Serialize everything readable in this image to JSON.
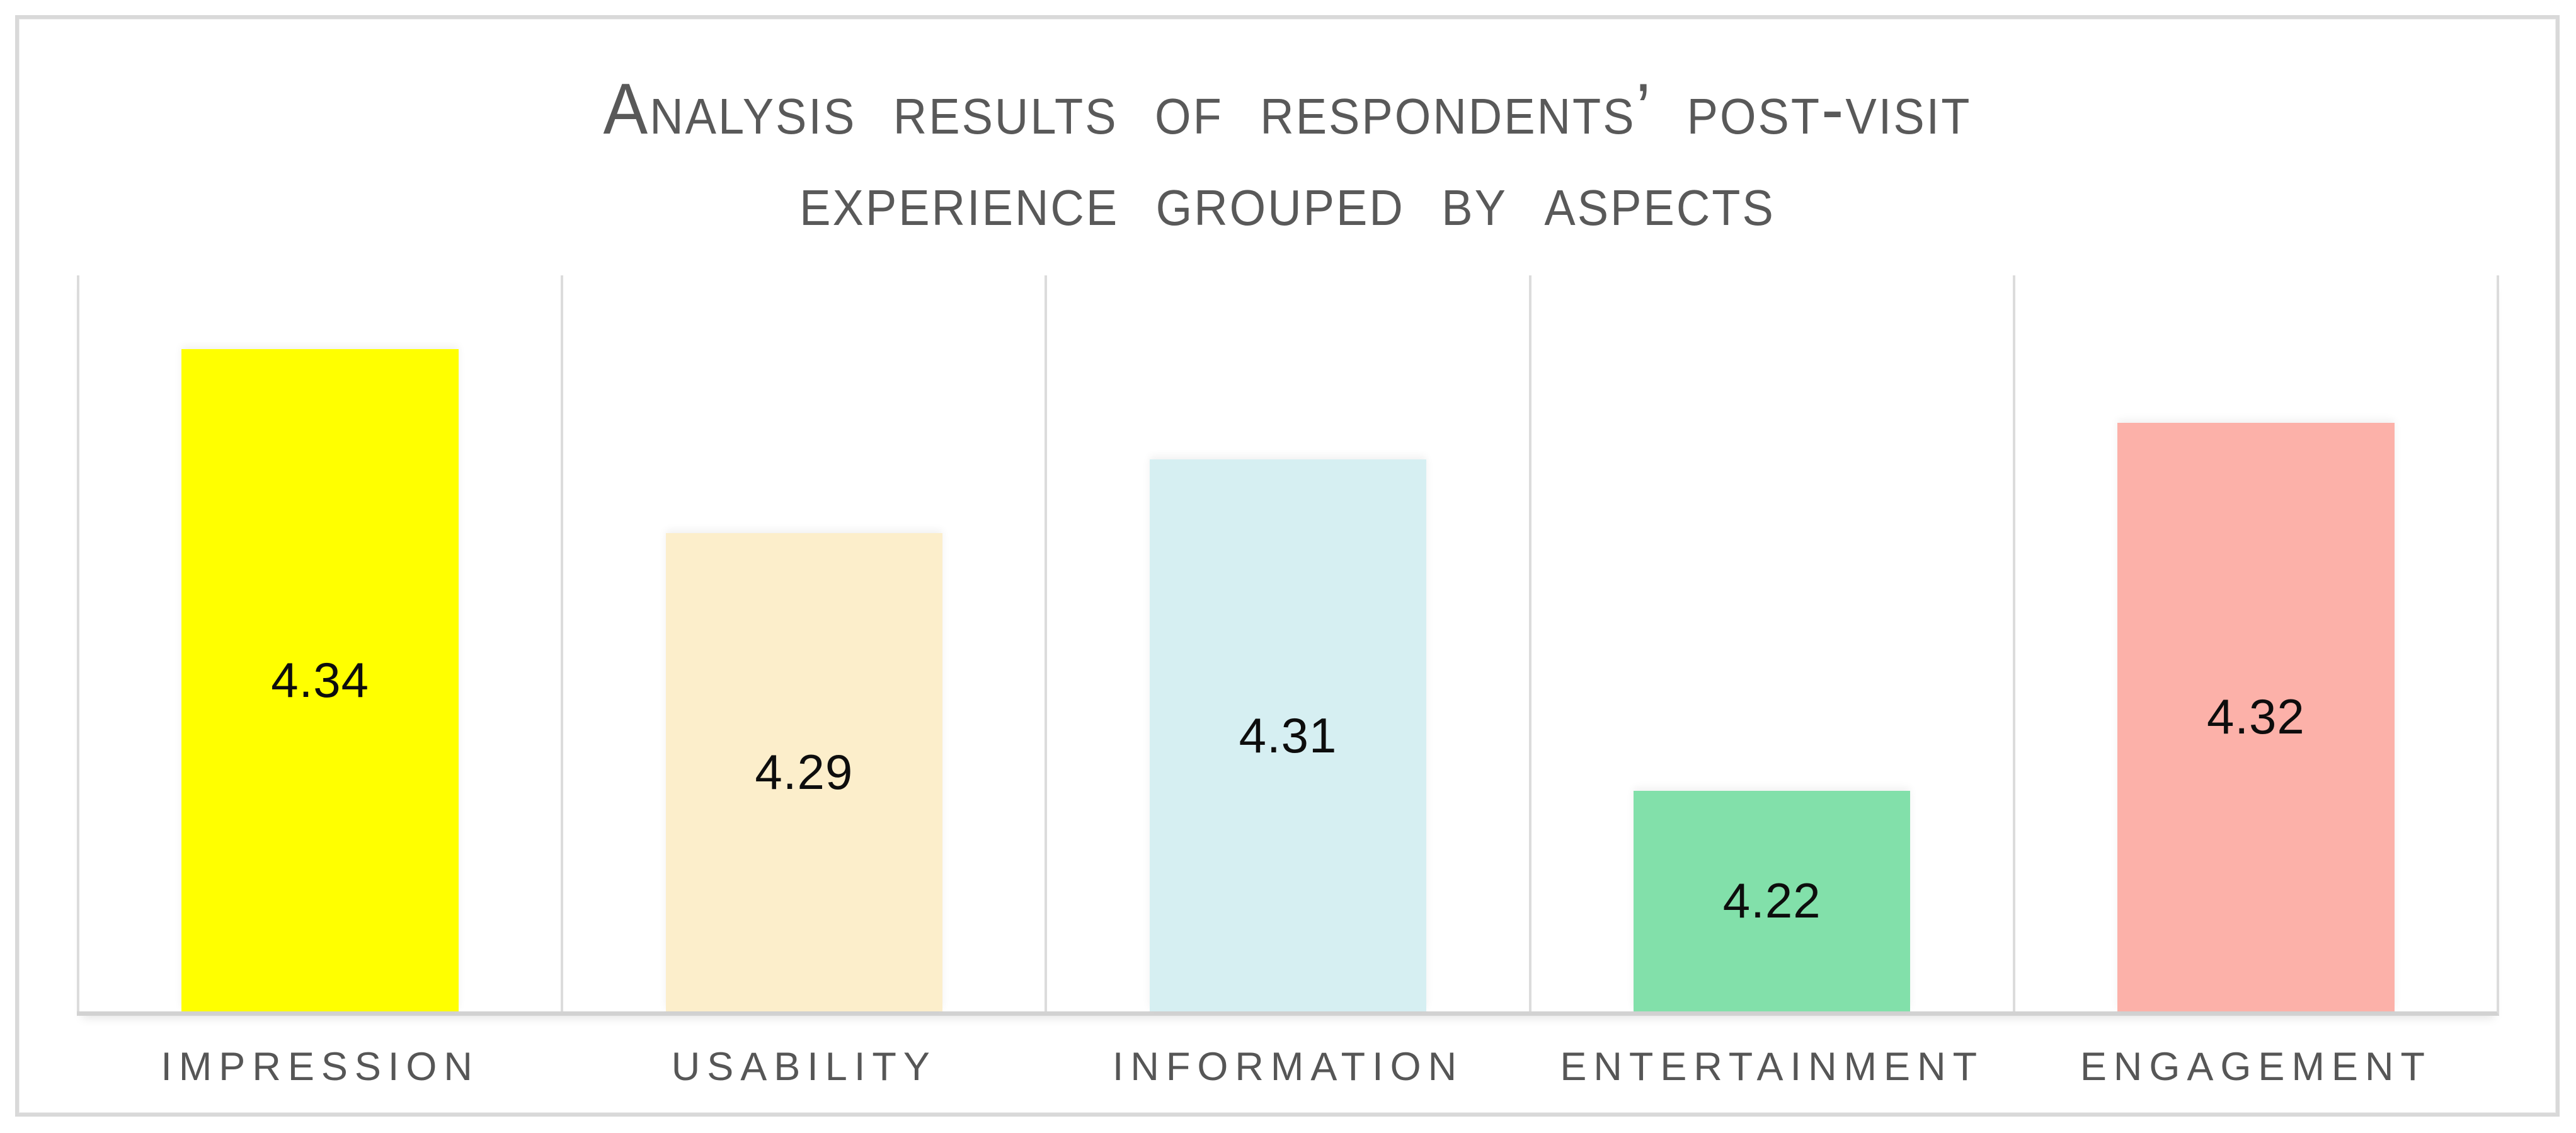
{
  "title": {
    "line1": "Analysis results of respondents’ post-visit",
    "line2": "experience grouped by aspects"
  },
  "chart_data": {
    "type": "bar",
    "title": "Analysis results of respondents’ post-visit experience grouped by aspects",
    "categories": [
      "IMPRESSION",
      "USABILITY",
      "INFORMATION",
      "ENTERTAINMENT",
      "ENGAGEMENT"
    ],
    "values": [
      4.34,
      4.29,
      4.31,
      4.22,
      4.32
    ],
    "value_labels": [
      "4.34",
      "4.29",
      "4.31",
      "4.22",
      "4.32"
    ],
    "bar_colors": [
      "#FFFF00",
      "#FCEECB",
      "#D6EFF2",
      "#82E0AA",
      "#FCB1A9"
    ],
    "xlabel": "",
    "ylabel": "",
    "ylim": [
      4.16,
      4.36
    ],
    "grid": "vertical-only",
    "gridline_count": 6,
    "legend": "none",
    "value_label_position": "inside-center",
    "value_label_color": "#0d0d0d"
  },
  "colors": {
    "title_text": "#595959",
    "category_text": "#565656",
    "gridline": "#DCDCDC",
    "baseline": "#D2D2D2",
    "frame_border": "#D9D9D9",
    "background": "#FFFFFF"
  }
}
